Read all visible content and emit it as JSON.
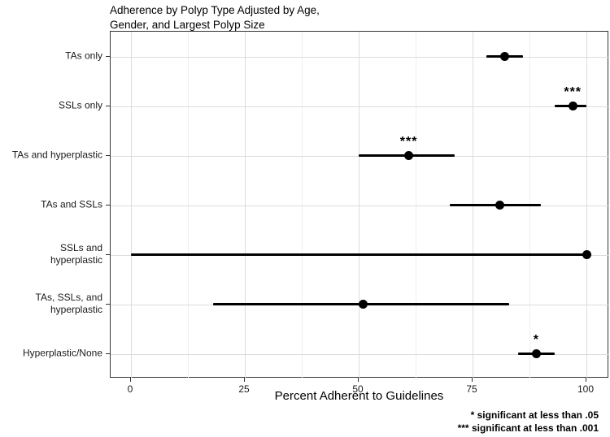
{
  "title": "Adherence by Polyp Type Adjusted by Age,\nGender, and Largest Polyp Size",
  "xlabel": "Percent Adherent to Guidelines",
  "footnotes": [
    "* significant at less than .05",
    "*** significant at less than .001"
  ],
  "colors": {
    "point": "#000000",
    "ci_line": "#000000",
    "grid_major": "#dcdcdc",
    "grid_minor": "#efefef",
    "panel_border": "#333333"
  },
  "chart_data": {
    "type": "scatter",
    "subtype": "horizontal-dot-with-ci",
    "title": "Adherence by Polyp Type Adjusted by Age, Gender, and Largest Polyp Size",
    "xlabel": "Percent Adherent to Guidelines",
    "ylabel": "",
    "xlim": [
      0,
      100
    ],
    "x_ticks": [
      0,
      25,
      50,
      75,
      100
    ],
    "x_minor_ticks": [
      12.5,
      37.5,
      62.5,
      87.5
    ],
    "grid": true,
    "legend": false,
    "categories": [
      "TAs only",
      "SSLs only",
      "TAs and hyperplastic",
      "TAs and SSLs",
      "SSLs and\nhyperplastic",
      "TAs, SSLs, and\nhyperplastic",
      "Hyperplastic/None"
    ],
    "points": [
      {
        "category": "TAs only",
        "estimate": 82,
        "ci_low": 78,
        "ci_high": 86,
        "significance": ""
      },
      {
        "category": "SSLs only",
        "estimate": 97,
        "ci_low": 93,
        "ci_high": 100,
        "significance": "***"
      },
      {
        "category": "TAs and hyperplastic",
        "estimate": 61,
        "ci_low": 50,
        "ci_high": 71,
        "significance": "***"
      },
      {
        "category": "TAs and SSLs",
        "estimate": 81,
        "ci_low": 70,
        "ci_high": 90,
        "significance": ""
      },
      {
        "category": "SSLs and hyperplastic",
        "estimate": 100,
        "ci_low": 0,
        "ci_high": 100,
        "significance": ""
      },
      {
        "category": "TAs, SSLs, and hyperplastic",
        "estimate": 51,
        "ci_low": 18,
        "ci_high": 83,
        "significance": ""
      },
      {
        "category": "Hyperplastic/None",
        "estimate": 89,
        "ci_low": 85,
        "ci_high": 93,
        "significance": "*"
      }
    ],
    "annotations": [
      "* significant at less than .05",
      "*** significant at less than .001"
    ]
  }
}
